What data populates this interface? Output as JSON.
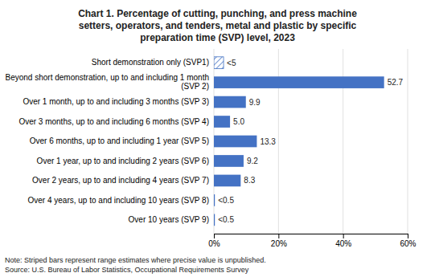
{
  "chart_data": {
    "type": "bar",
    "orientation": "horizontal",
    "title": "Chart 1. Percentage of cutting, punching, and press machine\nsetters, operators, and tenders, metal and plastic by specific\npreparation time (SVP) level, 2023",
    "categories": [
      "Short demonstration only (SVP1)",
      "Beyond short demonstration, up to and including 1 month\n(SVP 2)",
      "Over 1 month, up to and including 3 months (SVP 3)",
      "Over 3 months, up to and including 6 months (SVP 4)",
      "Over 6 months, up to and including 1 year (SVP 5)",
      "Over 1 year, up to and including 2 years (SVP 6)",
      "Over 2 years, up to and including 4 years (SVP 7)",
      "Over 4 years, up to and including 10 years (SVP 8)",
      "Over 10 years (SVP 9)"
    ],
    "values": [
      3.0,
      52.7,
      9.9,
      5.0,
      13.3,
      9.2,
      8.3,
      0.3,
      0.3
    ],
    "value_labels": [
      "<5",
      "52.7",
      "9.9",
      "5.0",
      "13.3",
      "9.2",
      "8.3",
      "<0.5",
      "<0.5"
    ],
    "striped": [
      true,
      false,
      false,
      false,
      false,
      false,
      false,
      false,
      false
    ],
    "data_labels": true,
    "color": "#4472c4",
    "xlim": [
      0,
      60
    ],
    "xticks": [
      {
        "value": 0,
        "label": "0%"
      },
      {
        "value": 20,
        "label": "20%"
      },
      {
        "value": 40,
        "label": "40%"
      },
      {
        "value": 60,
        "label": "60%"
      }
    ],
    "grid": true,
    "annotations": [
      "Note: Striped bars represent range estimates where precise value is unpublished.",
      "Source: U.S. Bureau of Labor Statistics, Occupational Requirements Survey"
    ]
  }
}
